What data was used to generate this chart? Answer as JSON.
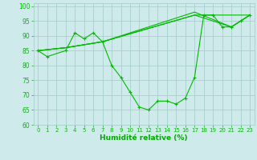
{
  "background_color": "#ceeaea",
  "grid_color": "#aacece",
  "line_color": "#00bb00",
  "xlabel": "Humidité relative (%)",
  "xlabel_color": "#00aa00",
  "xlim": [
    -0.5,
    23.5
  ],
  "ylim": [
    60,
    101
  ],
  "yticks": [
    60,
    65,
    70,
    75,
    80,
    85,
    90,
    95,
    100
  ],
  "xticks": [
    0,
    1,
    2,
    3,
    4,
    5,
    6,
    7,
    8,
    9,
    10,
    11,
    12,
    13,
    14,
    15,
    16,
    17,
    18,
    19,
    20,
    21,
    22,
    23
  ],
  "series1_x": [
    0,
    1,
    3,
    4,
    5,
    6,
    7,
    8,
    9,
    10,
    11,
    12,
    13,
    14,
    15,
    16,
    17,
    18,
    19,
    20,
    21,
    22,
    23
  ],
  "series1_y": [
    85,
    83,
    85,
    91,
    89,
    91,
    88,
    80,
    76,
    71,
    66,
    65,
    68,
    68,
    67,
    69,
    76,
    97,
    97,
    93,
    93,
    95,
    97
  ],
  "series2_x": [
    0,
    3,
    7,
    17,
    23
  ],
  "series2_y": [
    85,
    86,
    88,
    97,
    97
  ],
  "series3_x": [
    0,
    3,
    7,
    17,
    21,
    23
  ],
  "series3_y": [
    85,
    86,
    88,
    97,
    93,
    97
  ],
  "series4_x": [
    0,
    3,
    7,
    17,
    21,
    23
  ],
  "series4_y": [
    85,
    86,
    88,
    98,
    93,
    97
  ]
}
